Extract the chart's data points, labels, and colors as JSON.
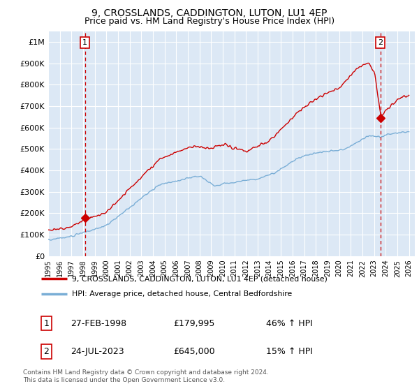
{
  "title": "9, CROSSLANDS, CADDINGTON, LUTON, LU1 4EP",
  "subtitle": "Price paid vs. HM Land Registry's House Price Index (HPI)",
  "title_fontsize": 10,
  "subtitle_fontsize": 9,
  "ylabel_ticks": [
    "£0",
    "£100K",
    "£200K",
    "£300K",
    "£400K",
    "£500K",
    "£600K",
    "£700K",
    "£800K",
    "£900K",
    "£1M"
  ],
  "ytick_values": [
    0,
    100000,
    200000,
    300000,
    400000,
    500000,
    600000,
    700000,
    800000,
    900000,
    1000000
  ],
  "ylim": [
    0,
    1050000
  ],
  "xlim_start": 1995.0,
  "xlim_end": 2026.5,
  "sale1_x": 1998.15,
  "sale1_y": 179995,
  "sale2_x": 2023.55,
  "sale2_y": 645000,
  "sale1_label": "1",
  "sale2_label": "2",
  "property_line_color": "#cc0000",
  "hpi_line_color": "#7aaed6",
  "vline_color": "#cc0000",
  "vline_style": "--",
  "background_color": "#ffffff",
  "plot_bg_color": "#dce8f5",
  "grid_color": "#ffffff",
  "legend_line1": "9, CROSSLANDS, CADDINGTON, LUTON, LU1 4EP (detached house)",
  "legend_line2": "HPI: Average price, detached house, Central Bedfordshire",
  "table_row1": [
    "1",
    "27-FEB-1998",
    "£179,995",
    "46% ↑ HPI"
  ],
  "table_row2": [
    "2",
    "24-JUL-2023",
    "£645,000",
    "15% ↑ HPI"
  ],
  "footnote": "Contains HM Land Registry data © Crown copyright and database right 2024.\nThis data is licensed under the Open Government Licence v3.0.",
  "xtick_years": [
    1995,
    1996,
    1997,
    1998,
    1999,
    2000,
    2001,
    2002,
    2003,
    2004,
    2005,
    2006,
    2007,
    2008,
    2009,
    2010,
    2011,
    2012,
    2013,
    2014,
    2015,
    2016,
    2017,
    2018,
    2019,
    2020,
    2021,
    2022,
    2023,
    2024,
    2025,
    2026
  ]
}
